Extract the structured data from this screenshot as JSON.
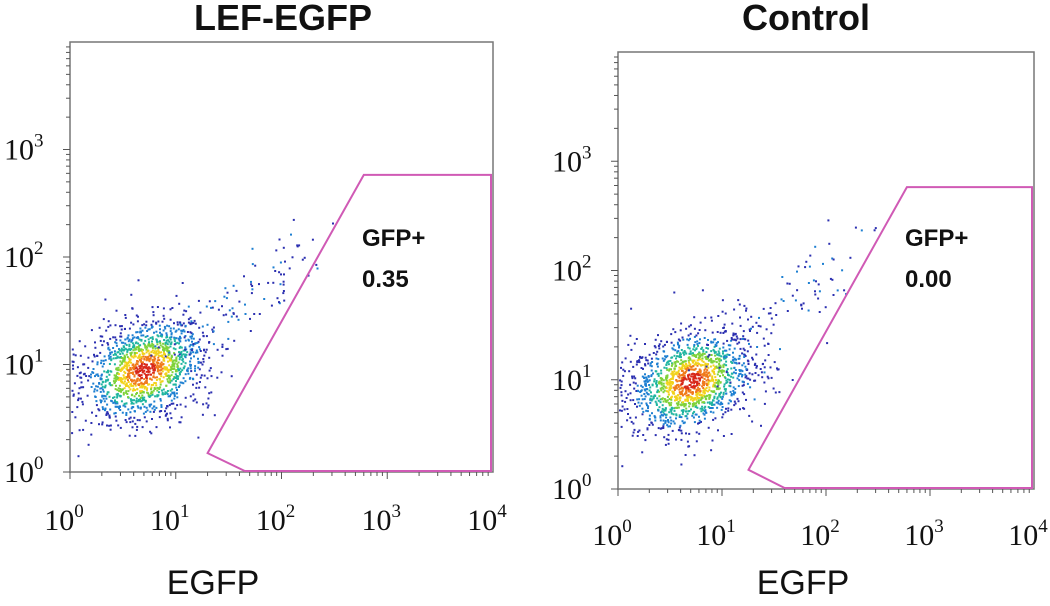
{
  "chart_data": [
    {
      "type": "scatter",
      "title": "LEF-EGFP",
      "xlabel": "EGFP",
      "ylabel": "",
      "x_scale": "log",
      "y_scale": "log",
      "xlim": [
        1,
        10000
      ],
      "ylim": [
        1,
        10000
      ],
      "x_ticks": [
        {
          "base": "10",
          "exp": "0"
        },
        {
          "base": "10",
          "exp": "1"
        },
        {
          "base": "10",
          "exp": "2"
        },
        {
          "base": "10",
          "exp": "3"
        },
        {
          "base": "10",
          "exp": "4"
        }
      ],
      "y_ticks": [
        {
          "base": "10",
          "exp": "0"
        },
        {
          "base": "10",
          "exp": "1"
        },
        {
          "base": "10",
          "exp": "2"
        },
        {
          "base": "10",
          "exp": "3"
        }
      ],
      "population": {
        "center_x": 5,
        "center_y": 9,
        "spread_log": 0.28
      },
      "gate": {
        "label": "GFP+",
        "value": "0.35",
        "vertices": [
          [
            20,
            1.5
          ],
          [
            45,
            1
          ],
          [
            12000,
            1
          ],
          [
            12000,
            580
          ],
          [
            600,
            580
          ]
        ]
      }
    },
    {
      "type": "scatter",
      "title": "Control",
      "xlabel": "EGFP",
      "ylabel": "",
      "x_scale": "log",
      "y_scale": "log",
      "xlim": [
        1,
        10000
      ],
      "ylim": [
        1,
        10000
      ],
      "x_ticks": [
        {
          "base": "10",
          "exp": "0"
        },
        {
          "base": "10",
          "exp": "1"
        },
        {
          "base": "10",
          "exp": "2"
        },
        {
          "base": "10",
          "exp": "3"
        },
        {
          "base": "10",
          "exp": "4"
        }
      ],
      "y_ticks": [
        {
          "base": "10",
          "exp": "0"
        },
        {
          "base": "10",
          "exp": "1"
        },
        {
          "base": "10",
          "exp": "2"
        },
        {
          "base": "10",
          "exp": "3"
        }
      ],
      "population": {
        "center_x": 5,
        "center_y": 10,
        "spread_log": 0.28
      },
      "gate": {
        "label": "GFP+",
        "value": "0.00",
        "vertices": [
          [
            18,
            1.5
          ],
          [
            40,
            1
          ],
          [
            12000,
            1
          ],
          [
            12000,
            580
          ],
          [
            600,
            580
          ]
        ]
      }
    }
  ],
  "colors": {
    "gate": "#d05ab5",
    "frame": "#777777",
    "density": [
      "#2b2fb0",
      "#1d7fd1",
      "#1fb5a0",
      "#7ed23a",
      "#f2d21b",
      "#f07a1b",
      "#d8281a"
    ]
  }
}
